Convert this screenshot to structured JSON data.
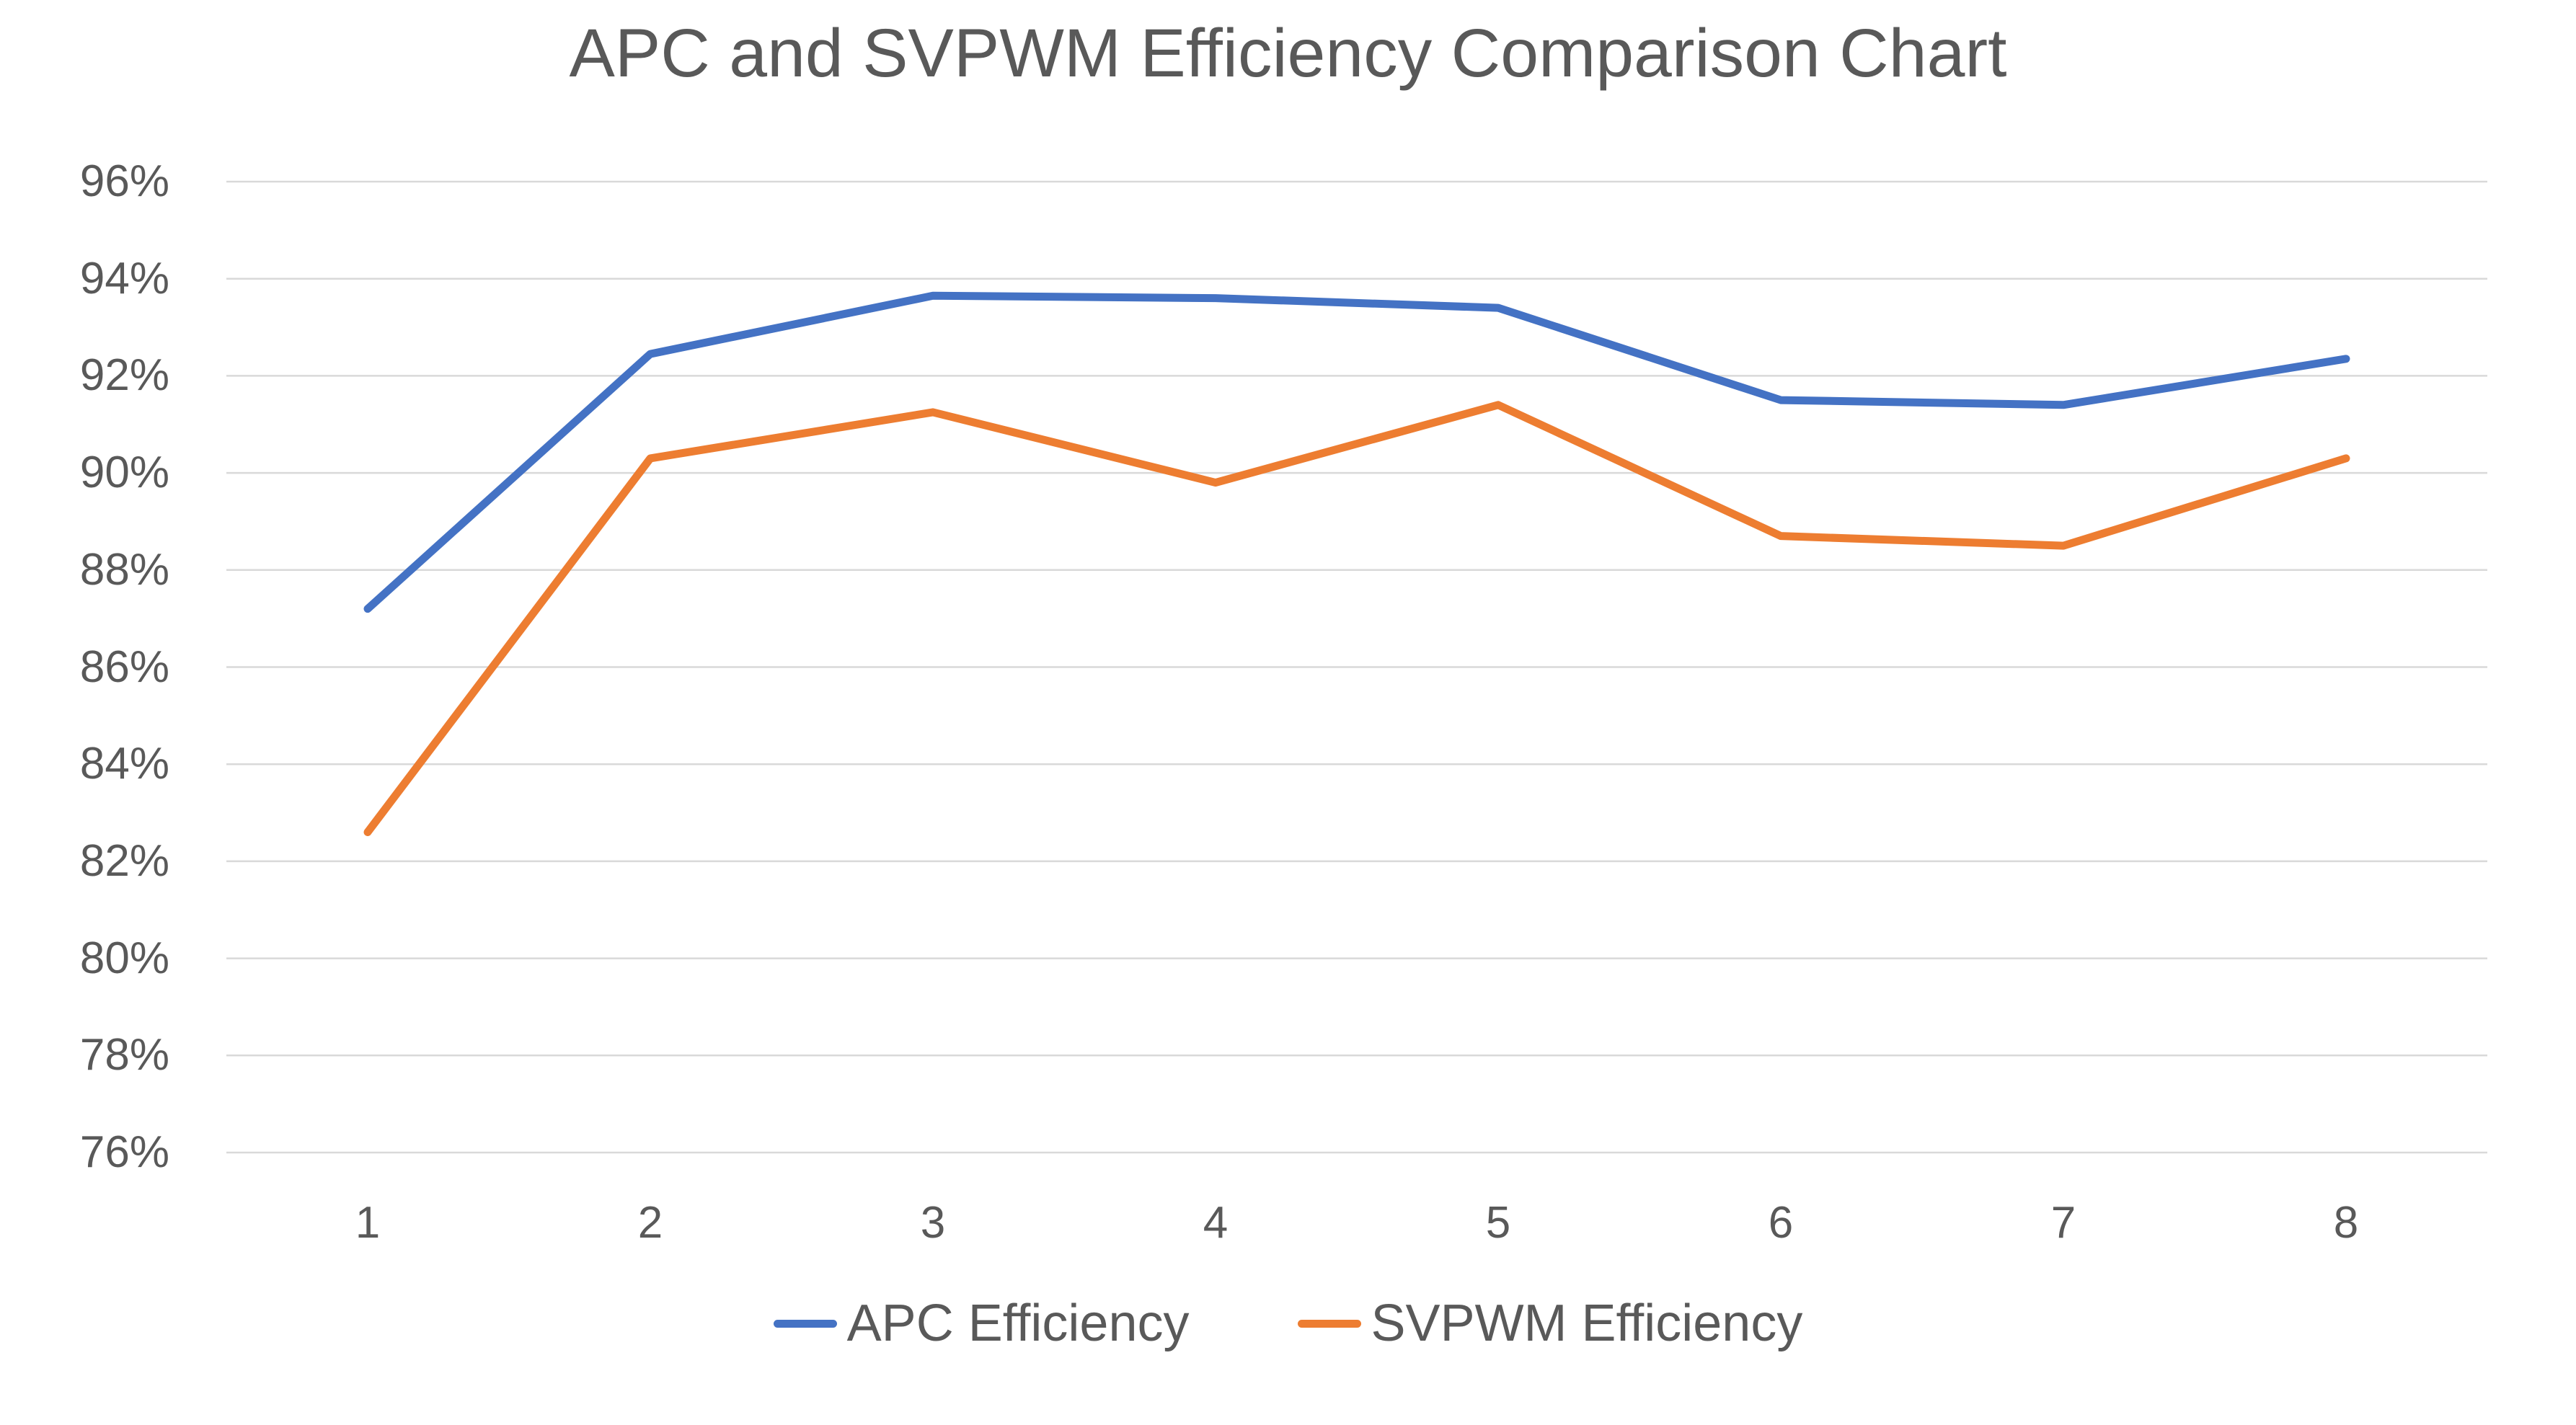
{
  "page": {
    "background": "#FFFFFF",
    "text_color": "#595959",
    "gridline_color": "#D9D9D9"
  },
  "chart_data": {
    "type": "line",
    "title": "APC and SVPWM Efficiency Comparison Chart",
    "categories": [
      "1",
      "2",
      "3",
      "4",
      "5",
      "6",
      "7",
      "8"
    ],
    "series": [
      {
        "name": "APC Efficiency",
        "color": "#4472C4",
        "values": [
          87.2,
          92.45,
          93.65,
          93.6,
          93.4,
          91.5,
          91.4,
          92.35
        ]
      },
      {
        "name": "SVPWM Efficiency",
        "color": "#ED7D31",
        "values": [
          82.6,
          90.3,
          91.25,
          89.8,
          91.4,
          88.7,
          88.5,
          90.3
        ]
      }
    ],
    "xlabel": "",
    "ylabel": "",
    "ylim": [
      76,
      96
    ],
    "y_tick_step": 2,
    "y_tick_labels": [
      "76%",
      "78%",
      "80%",
      "82%",
      "84%",
      "86%",
      "88%",
      "90%",
      "92%",
      "94%",
      "96%"
    ],
    "grid": "horizontal-only",
    "legend_position": "bottom"
  }
}
